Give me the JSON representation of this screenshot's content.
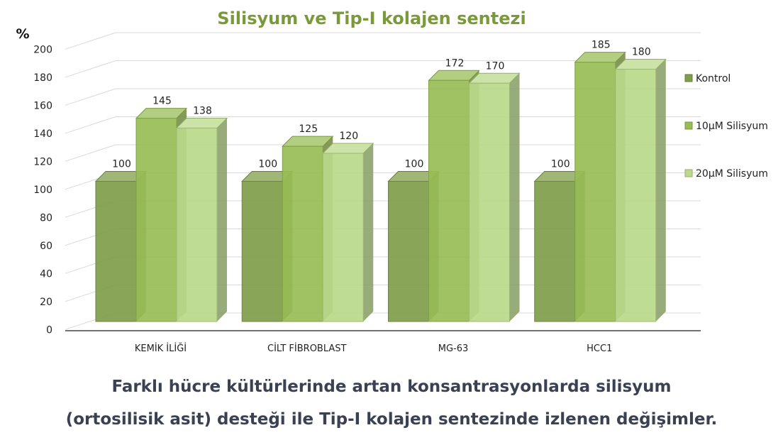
{
  "chart_data": {
    "type": "bar",
    "title": "Silisyum ve Tip-I kolajen sentezi",
    "ylabel": "%",
    "xlabel": "",
    "ylim": [
      0,
      200
    ],
    "yticks": [
      "0",
      "20",
      "40",
      "60",
      "80",
      "100",
      "120",
      "140",
      "160",
      "180",
      "200"
    ],
    "categories": [
      "KEMİK İLİĞİ",
      "CİLT FİBROBLAST",
      "MG-63",
      "HCC1"
    ],
    "series": [
      {
        "name": "Kontrol",
        "values": [
          100,
          100,
          100,
          100
        ],
        "color": "#7f9e4a"
      },
      {
        "name": "10μM Silisyum",
        "values": [
          145,
          125,
          172,
          185
        ],
        "color": "#98bd55"
      },
      {
        "name": "20μM Silisyum",
        "values": [
          138,
          120,
          170,
          180
        ],
        "color": "#bad98a"
      }
    ],
    "data_labels": [
      [
        "100",
        "100",
        "100",
        "100"
      ],
      [
        "145",
        "125",
        "172",
        "185"
      ],
      [
        "138",
        "120",
        "170",
        "180"
      ]
    ],
    "legend_position": "right",
    "grid": true
  },
  "caption": {
    "line1": "Farklı hücre kültürlerinde artan konsantrasyonlarda silisyum",
    "line2": "(ortosilisik asit) desteği ile Tip-I kolajen sentezinde izlenen değişimler."
  }
}
